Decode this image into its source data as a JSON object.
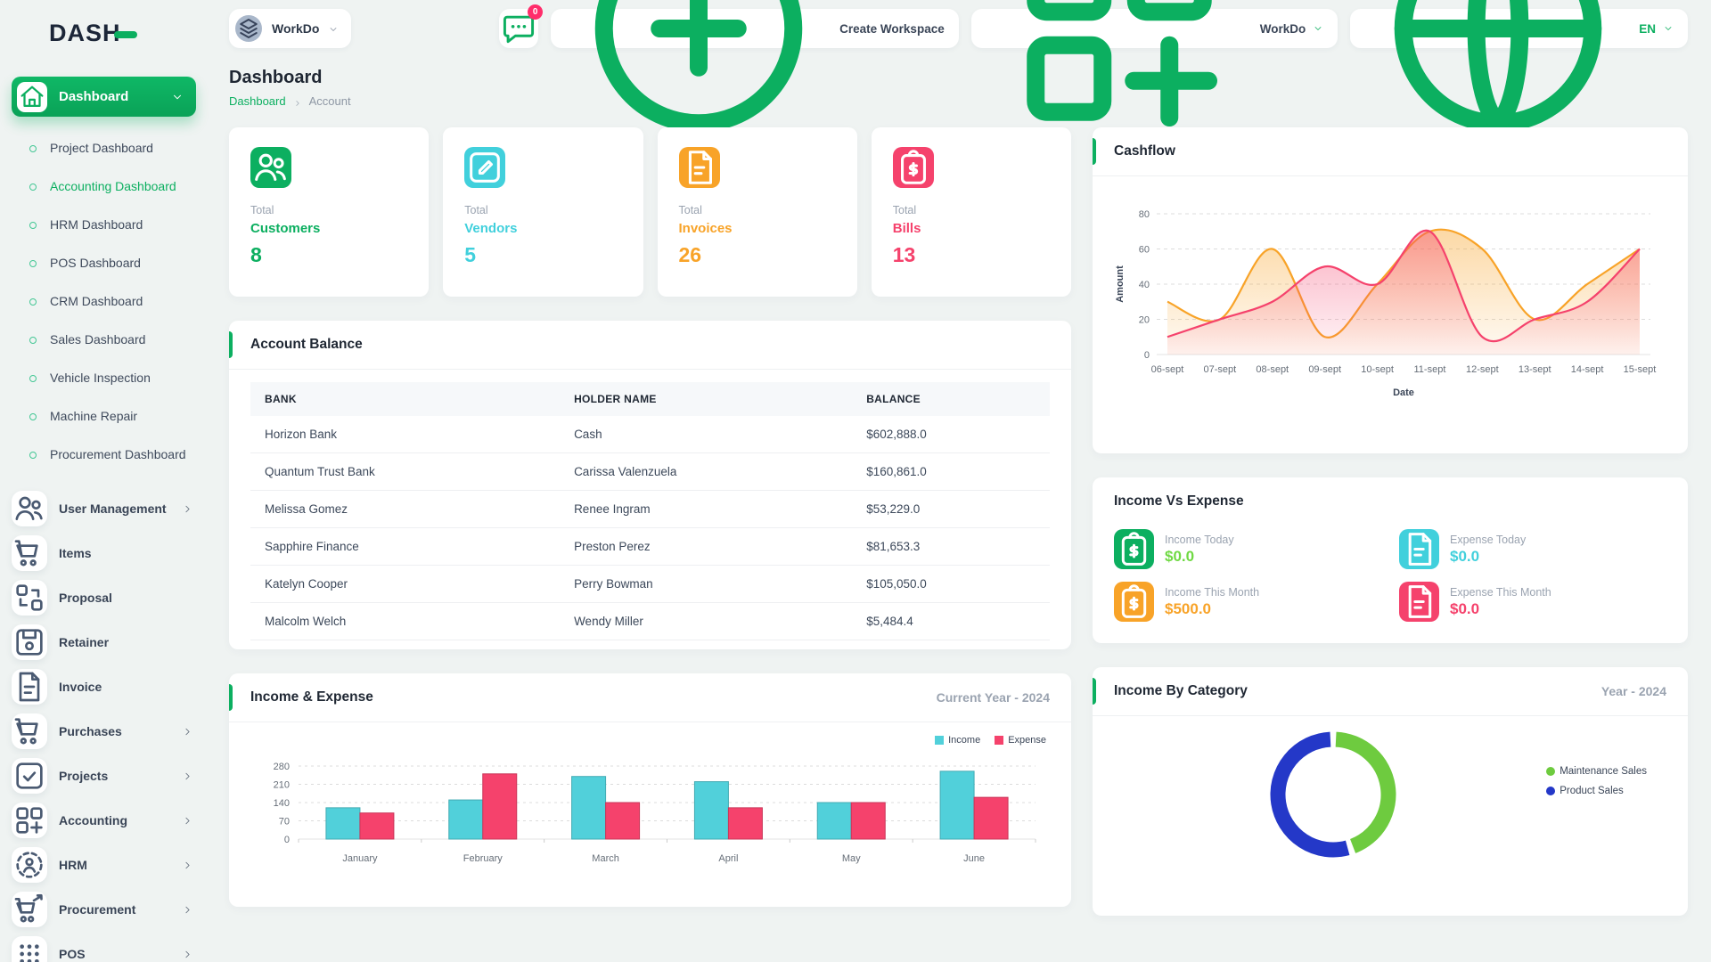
{
  "brand": {
    "name": "DASH"
  },
  "topbar": {
    "workspace_switcher": {
      "label": "WorkDo"
    },
    "messages": {
      "badge": "0"
    },
    "create_workspace": {
      "label": "Create Workspace"
    },
    "company_menu": {
      "label": "WorkDo"
    },
    "language": {
      "label": "EN"
    }
  },
  "sidebar": {
    "main_item": {
      "label": "Dashboard"
    },
    "dashboards": [
      {
        "label": "Project Dashboard",
        "active": false
      },
      {
        "label": "Accounting Dashboard",
        "active": true
      },
      {
        "label": "HRM Dashboard",
        "active": false
      },
      {
        "label": "POS Dashboard",
        "active": false
      },
      {
        "label": "CRM Dashboard",
        "active": false
      },
      {
        "label": "Sales Dashboard",
        "active": false
      },
      {
        "label": "Vehicle Inspection",
        "active": false
      },
      {
        "label": "Machine Repair",
        "active": false
      },
      {
        "label": "Procurement Dashboard",
        "active": false
      }
    ],
    "menu": [
      {
        "label": "User Management",
        "icon": "users",
        "chevron": true
      },
      {
        "label": "Items",
        "icon": "cart",
        "chevron": false
      },
      {
        "label": "Proposal",
        "icon": "proposal",
        "chevron": false
      },
      {
        "label": "Retainer",
        "icon": "retainer",
        "chevron": false
      },
      {
        "label": "Invoice",
        "icon": "invoice",
        "chevron": false
      },
      {
        "label": "Purchases",
        "icon": "cart",
        "chevron": true
      },
      {
        "label": "Projects",
        "icon": "projects",
        "chevron": true
      },
      {
        "label": "Accounting",
        "icon": "accounting",
        "chevron": true
      },
      {
        "label": "HRM",
        "icon": "hrm",
        "chevron": true
      },
      {
        "label": "Procurement",
        "icon": "procurement",
        "chevron": true
      },
      {
        "label": "POS",
        "icon": "pos",
        "chevron": true
      }
    ]
  },
  "page": {
    "title": "Dashboard",
    "breadcrumb": {
      "root": "Dashboard",
      "current": "Account"
    }
  },
  "stats": [
    {
      "total_label": "Total",
      "label": "Customers",
      "value": "8",
      "color": "#0caf60",
      "icon": "users"
    },
    {
      "total_label": "Total",
      "label": "Vendors",
      "value": "5",
      "color": "#41d0dc",
      "icon": "note"
    },
    {
      "total_label": "Total",
      "label": "Invoices",
      "value": "26",
      "color": "#f8a328",
      "icon": "filetext"
    },
    {
      "total_label": "Total",
      "label": "Bills",
      "value": "13",
      "color": "#f5426c",
      "icon": "clipdollar"
    }
  ],
  "account_balance": {
    "title": "Account Balance",
    "columns": [
      "BANK",
      "HOLDER NAME",
      "BALANCE"
    ],
    "rows": [
      [
        "Horizon Bank",
        "Cash",
        "$602,888.0"
      ],
      [
        "Quantum Trust Bank",
        "Carissa Valenzuela",
        "$160,861.0"
      ],
      [
        "Melissa Gomez",
        "Renee Ingram",
        "$53,229.0"
      ],
      [
        "Sapphire Finance",
        "Preston Perez",
        "$81,653.3"
      ],
      [
        "Katelyn Cooper",
        "Perry Bowman",
        "$105,050.0"
      ],
      [
        "Malcolm Welch",
        "Wendy Miller",
        "$5,484.4"
      ]
    ]
  },
  "income_vs_expense": {
    "title": "Income Vs Expense",
    "items": [
      {
        "label": "Income Today",
        "value": "$0.0",
        "color": "#0caf60",
        "value_color": "#6fd943",
        "icon": "clipdollar"
      },
      {
        "label": "Expense Today",
        "value": "$0.0",
        "color": "#41d0dc",
        "value_color": "#41d0dc",
        "icon": "filetext"
      },
      {
        "label": "Income This Month",
        "value": "$500.0",
        "color": "#f8a328",
        "value_color": "#f8a328",
        "icon": "clipdollar"
      },
      {
        "label": "Expense This Month",
        "value": "$0.0",
        "color": "#f5426c",
        "value_color": "#f5426c",
        "icon": "filetext"
      }
    ]
  },
  "chart_data": [
    {
      "id": "cashflow",
      "type": "area",
      "title": "Cashflow",
      "xlabel": "Date",
      "ylabel": "Amount",
      "ylim": [
        0,
        80
      ],
      "yticks": [
        0,
        20,
        40,
        60,
        80
      ],
      "grid": "dashed",
      "x": [
        "06-sept",
        "07-sept",
        "08-sept",
        "09-sept",
        "10-sept",
        "11-sept",
        "12-sept",
        "13-sept",
        "14-sept",
        "15-sept"
      ],
      "series": [
        {
          "color": "#f8a328",
          "values": [
            30,
            20,
            60,
            10,
            40,
            70,
            60,
            20,
            40,
            60
          ]
        },
        {
          "color": "#f5426c",
          "values": [
            10,
            20,
            30,
            50,
            40,
            70,
            10,
            20,
            30,
            60
          ]
        }
      ]
    },
    {
      "id": "income_expense",
      "type": "bar",
      "title": "Income & Expense",
      "subtitle": "Current Year - 2024",
      "categories": [
        "January",
        "February",
        "March",
        "April",
        "May",
        "June"
      ],
      "ylim": [
        0,
        280
      ],
      "yticks": [
        0,
        70,
        140,
        210,
        280
      ],
      "grid": "dashed",
      "legend": "top-right",
      "series": [
        {
          "name": "Income",
          "color": "#51d0da",
          "values": [
            120,
            150,
            240,
            220,
            140,
            260
          ]
        },
        {
          "name": "Expense",
          "color": "#f5426c",
          "values": [
            100,
            250,
            140,
            120,
            140,
            160
          ]
        }
      ]
    },
    {
      "id": "income_by_category",
      "type": "donut",
      "title": "Income By Category",
      "subtitle": "Year - 2024",
      "legend": "right",
      "slices": [
        {
          "label": "Maintenance Sales",
          "value": 45,
          "color": "#6ecb3f"
        },
        {
          "label": "Product Sales",
          "value": 55,
          "color": "#2438c8"
        }
      ]
    }
  ]
}
